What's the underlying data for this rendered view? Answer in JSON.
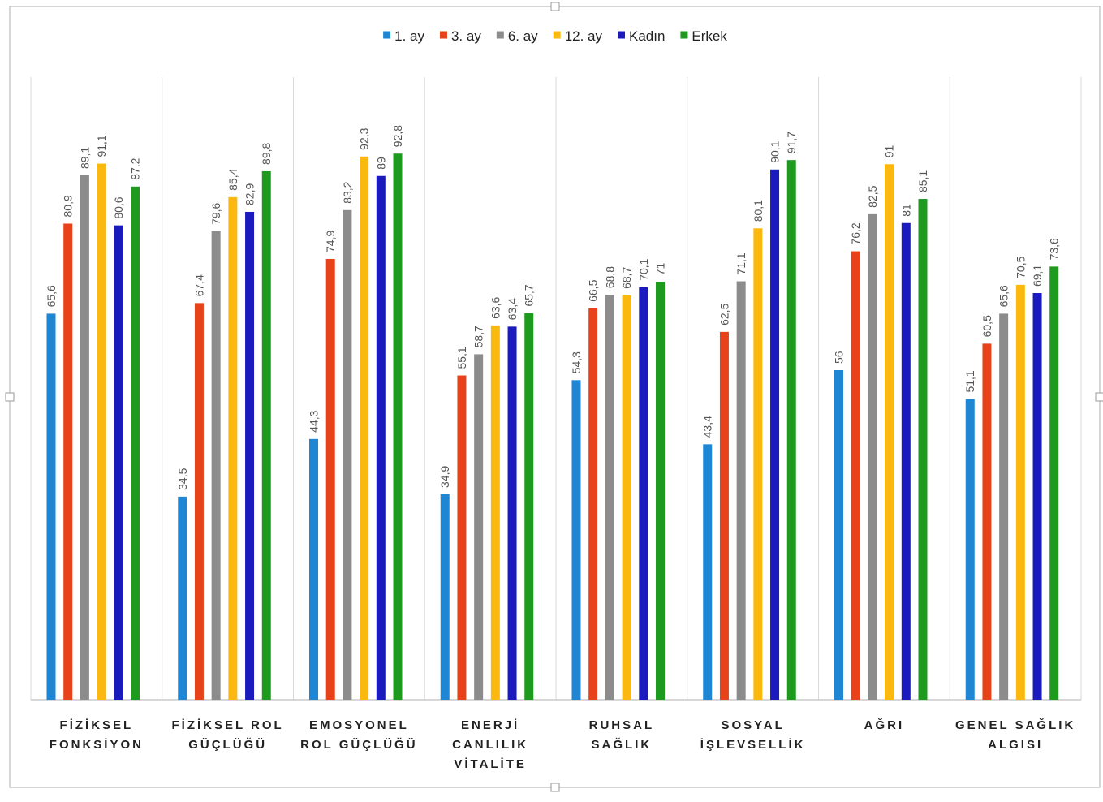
{
  "chart_data": {
    "type": "bar",
    "title": "",
    "xlabel": "",
    "ylabel": "",
    "ylim": [
      0,
      100
    ],
    "grid": "vertical category separators",
    "legend_position": "top-center",
    "categories": [
      [
        "FİZİKSEL",
        "FONKSİYON"
      ],
      [
        "FİZİKSEL ROL",
        "GÜÇLÜĞÜ"
      ],
      [
        "EMOSYONEL",
        "ROL GÜÇLÜĞÜ"
      ],
      [
        "ENERJİ",
        "CANLILIK",
        "VİTALİTE"
      ],
      [
        "RUHSAL",
        "SAĞLIK"
      ],
      [
        "SOSYAL",
        "İŞLEVSELLİK"
      ],
      [
        "AĞRI"
      ],
      [
        "GENEL SAĞLIK",
        "ALGISI"
      ]
    ],
    "series": [
      {
        "name": "1. ay",
        "color": "#1f86d4",
        "values": [
          65.6,
          34.5,
          44.3,
          34.9,
          54.3,
          43.4,
          56,
          51.1
        ],
        "labels": [
          "65,6",
          "34,5",
          "44,3",
          "34,9",
          "54,3",
          "43,4",
          "56",
          "51,1"
        ]
      },
      {
        "name": "3. ay",
        "color": "#e8421a",
        "values": [
          80.9,
          67.4,
          74.9,
          55.1,
          66.5,
          62.5,
          76.2,
          60.5
        ],
        "labels": [
          "80,9",
          "67,4",
          "74,9",
          "55,1",
          "66,5",
          "62,5",
          "76,2",
          "60,5"
        ]
      },
      {
        "name": "6. ay",
        "color": "#8c8c8c",
        "values": [
          89.1,
          79.6,
          83.2,
          58.7,
          68.8,
          71.1,
          82.5,
          65.6
        ],
        "labels": [
          "89,1",
          "79,6",
          "83,2",
          "58,7",
          "68,8",
          "71,1",
          "82,5",
          "65,6"
        ]
      },
      {
        "name": "12. ay",
        "color": "#fbb90f",
        "values": [
          91.1,
          85.4,
          92.3,
          63.6,
          68.7,
          80.1,
          91,
          70.5
        ],
        "labels": [
          "91,1",
          "85,4",
          "92,3",
          "63,6",
          "68,7",
          "80,1",
          "91",
          "70,5"
        ]
      },
      {
        "name": "Kadın",
        "color": "#1b1bbd",
        "values": [
          80.6,
          82.9,
          89,
          63.4,
          70.1,
          90.1,
          81,
          69.1
        ],
        "labels": [
          "80,6",
          "82,9",
          "89",
          "63,4",
          "70,1",
          "90,1",
          "81",
          "69,1"
        ]
      },
      {
        "name": "Erkek",
        "color": "#1e9a1e",
        "values": [
          87.2,
          89.8,
          92.8,
          65.7,
          71,
          91.7,
          85.1,
          73.6
        ],
        "labels": [
          "87,2",
          "89,8",
          "92,8",
          "65,7",
          "71",
          "91,7",
          "85,1",
          "73,6"
        ]
      }
    ]
  },
  "colors": {
    "separator": "#d9d9d9",
    "axis": "#bfbfbf",
    "frame": "#c8c8c8"
  }
}
